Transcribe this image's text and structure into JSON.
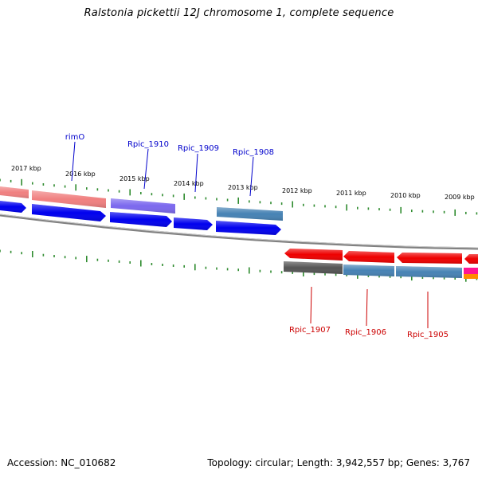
{
  "title": "Ralstonia pickettii 12J chromosome 1, complete sequence",
  "footer": {
    "accession": "Accession: NC_010682",
    "summary": "Topology: circular; Length: 3,942,557 bp; Genes: 3,767"
  },
  "colors": {
    "tick": "#2e8b2e",
    "axis": "#808080",
    "forward_label": "#0000cc",
    "reverse_label": "#cc0000",
    "cds_blue": "#0000ee",
    "salmon": "#f08080",
    "purple": "#7b68ee",
    "steelblue": "#4682b4",
    "red": "#ee0000",
    "gray": "#555555",
    "magenta": "#ff1493",
    "orange": "#ff8c00"
  },
  "kbp_labels": [
    "2017 kbp",
    "2016 kbp",
    "2015 kbp",
    "2014 kbp",
    "2013 kbp",
    "2012 kbp",
    "2011 kbp",
    "2010 kbp",
    "2009 kbp"
  ],
  "forward_genes": [
    {
      "label": "rimO"
    },
    {
      "label": "Rpic_1910"
    },
    {
      "label": "Rpic_1909"
    },
    {
      "label": "Rpic_1908"
    }
  ],
  "reverse_genes": [
    {
      "label": "Rpic_1907"
    },
    {
      "label": "Rpic_1906"
    },
    {
      "label": "Rpic_1905"
    }
  ]
}
